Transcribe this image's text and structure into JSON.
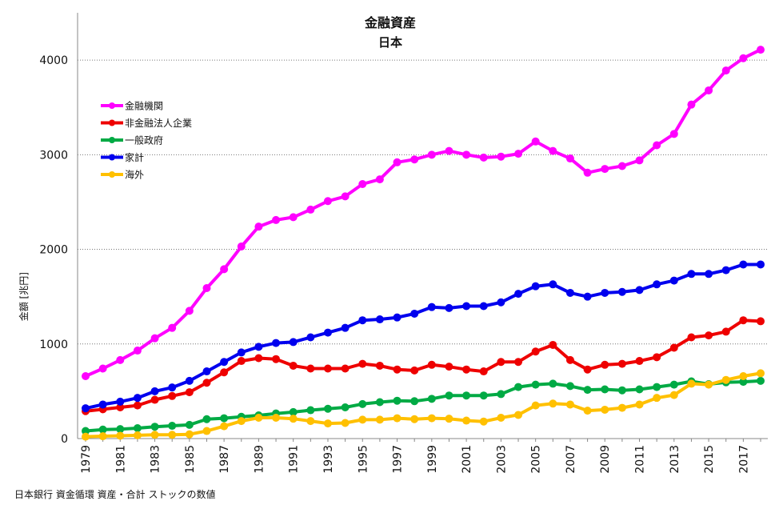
{
  "chart_data": {
    "type": "line",
    "title": "金融資産",
    "subtitle": "日本",
    "ylabel": "金額 [兆円]",
    "ylim": [
      0,
      4500
    ],
    "yticks": [
      0,
      1000,
      2000,
      3000,
      4000
    ],
    "grid": "horizontal dotted",
    "legend_position": "top-left",
    "x": [
      1979,
      1980,
      1981,
      1982,
      1983,
      1984,
      1985,
      1986,
      1987,
      1988,
      1989,
      1990,
      1991,
      1992,
      1993,
      1994,
      1995,
      1996,
      1997,
      1998,
      1999,
      2000,
      2001,
      2002,
      2003,
      2004,
      2005,
      2006,
      2007,
      2008,
      2009,
      2010,
      2011,
      2012,
      2013,
      2014,
      2015,
      2016,
      2017,
      2018
    ],
    "xtick_labels": [
      "1979",
      "1981",
      "1983",
      "1985",
      "1987",
      "1989",
      "1991",
      "1993",
      "1995",
      "1997",
      "1999",
      "2001",
      "2003",
      "2005",
      "2007",
      "2009",
      "2011",
      "2013",
      "2015",
      "2017"
    ],
    "series": [
      {
        "name": "金融機関",
        "color": "#ff00ff",
        "values": [
          660,
          740,
          830,
          930,
          1060,
          1170,
          1350,
          1590,
          1790,
          2030,
          2240,
          2310,
          2340,
          2420,
          2510,
          2560,
          2690,
          2740,
          2920,
          2950,
          3000,
          3040,
          3000,
          2970,
          2980,
          3010,
          3140,
          3040,
          2960,
          2810,
          2850,
          2880,
          2940,
          3100,
          3220,
          3530,
          3680,
          3890,
          4020,
          4110
        ]
      },
      {
        "name": "非金融法人企業",
        "color": "#ee0000",
        "values": [
          290,
          310,
          330,
          350,
          410,
          450,
          490,
          590,
          700,
          820,
          850,
          840,
          770,
          740,
          740,
          740,
          790,
          770,
          730,
          720,
          780,
          760,
          730,
          710,
          810,
          810,
          920,
          990,
          830,
          730,
          780,
          790,
          820,
          860,
          960,
          1070,
          1090,
          1130,
          1250,
          1240
        ]
      },
      {
        "name": "一般政府",
        "color": "#00aa44",
        "values": [
          80,
          95,
          100,
          110,
          125,
          135,
          145,
          205,
          215,
          230,
          245,
          265,
          280,
          300,
          315,
          330,
          365,
          385,
          400,
          395,
          420,
          455,
          455,
          455,
          470,
          545,
          570,
          580,
          555,
          515,
          520,
          510,
          520,
          545,
          570,
          605,
          575,
          595,
          600,
          610
        ]
      },
      {
        "name": "家計",
        "color": "#0000ee",
        "values": [
          320,
          360,
          390,
          430,
          500,
          540,
          610,
          710,
          810,
          910,
          970,
          1010,
          1020,
          1070,
          1120,
          1170,
          1250,
          1260,
          1280,
          1320,
          1390,
          1380,
          1400,
          1400,
          1440,
          1530,
          1610,
          1630,
          1540,
          1500,
          1540,
          1550,
          1570,
          1630,
          1670,
          1740,
          1740,
          1780,
          1840,
          1840
        ]
      },
      {
        "name": "海外",
        "color": "#ffc000",
        "values": [
          20,
          25,
          30,
          35,
          40,
          40,
          45,
          80,
          130,
          185,
          220,
          220,
          210,
          185,
          160,
          165,
          200,
          200,
          215,
          205,
          215,
          210,
          190,
          180,
          220,
          250,
          350,
          370,
          360,
          295,
          305,
          325,
          360,
          430,
          460,
          580,
          570,
          620,
          660,
          690
        ]
      }
    ]
  },
  "source_text": "日本銀行 資金循環 資産・合計 ストックの数値"
}
